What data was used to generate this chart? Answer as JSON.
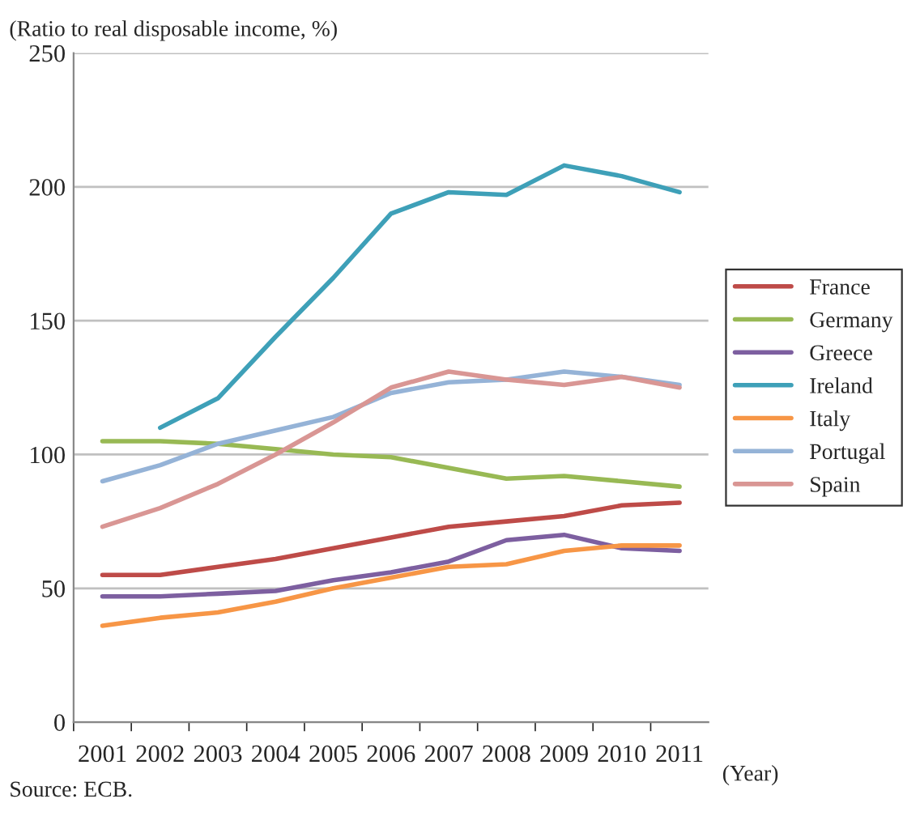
{
  "chart_data": {
    "type": "line",
    "ylabel": "(Ratio to real disposable income, %)",
    "xlabel": "(Year)",
    "categories": [
      "2001",
      "2002",
      "2003",
      "2004",
      "2005",
      "2006",
      "2007",
      "2008",
      "2009",
      "2010",
      "2011"
    ],
    "ylim": [
      0,
      250
    ],
    "yticks": [
      0,
      50,
      100,
      150,
      200,
      250
    ],
    "grid": "y",
    "legend": "right",
    "marker": "none",
    "line_style": "solid",
    "series": [
      {
        "name": "France",
        "color": "#be4b48",
        "values": [
          55,
          55,
          58,
          61,
          65,
          69,
          73,
          75,
          77,
          81,
          82
        ]
      },
      {
        "name": "Germany",
        "color": "#98b954",
        "values": [
          105,
          105,
          104,
          102,
          100,
          99,
          95,
          91,
          92,
          90,
          88
        ]
      },
      {
        "name": "Greece",
        "color": "#7d5fa0",
        "values": [
          47,
          47,
          48,
          49,
          53,
          56,
          60,
          68,
          70,
          65,
          64
        ]
      },
      {
        "name": "Ireland",
        "color": "#3ea0b8",
        "values": [
          null,
          110,
          121,
          144,
          166,
          190,
          198,
          197,
          208,
          204,
          198
        ]
      },
      {
        "name": "Italy",
        "color": "#f79646",
        "values": [
          36,
          39,
          41,
          45,
          50,
          54,
          58,
          59,
          64,
          66,
          66
        ]
      },
      {
        "name": "Portugal",
        "color": "#95b3d7",
        "values": [
          90,
          96,
          104,
          109,
          114,
          123,
          127,
          128,
          131,
          129,
          126
        ]
      },
      {
        "name": "Spain",
        "color": "#d99694",
        "values": [
          73,
          80,
          89,
          100,
          112,
          125,
          131,
          128,
          126,
          129,
          125
        ]
      }
    ],
    "annotations": [
      "Source: ECB."
    ]
  }
}
